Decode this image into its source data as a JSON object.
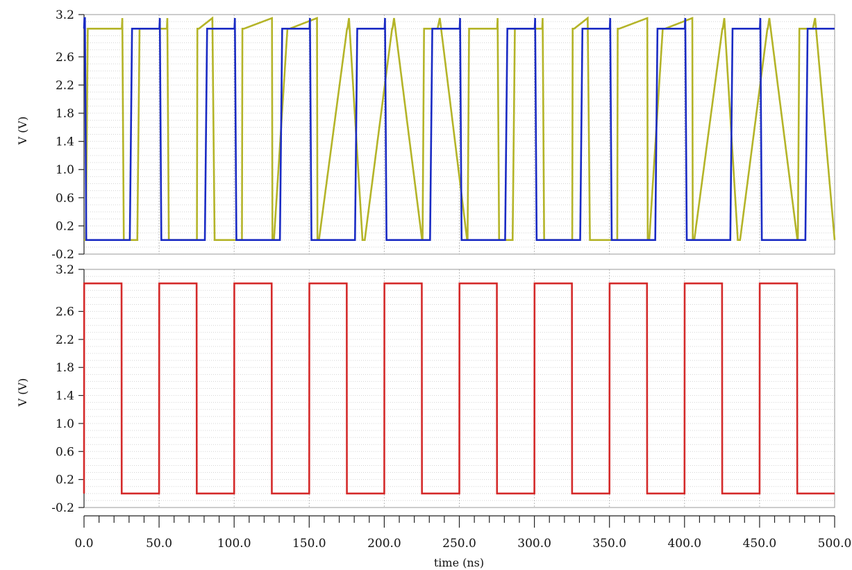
{
  "chart_data": [
    {
      "type": "line",
      "title": "",
      "ylabel": "V (V)",
      "ylim": [
        -0.2,
        3.2
      ],
      "yticks": [
        "3.2",
        "2.6",
        "2.2",
        "1.8",
        "1.4",
        "1.0",
        "0.6",
        "0.2",
        "-0.2"
      ],
      "grid": true,
      "series": [
        {
          "color": "#b4b428",
          "high": 3.0,
          "low": 0.0,
          "overshoot": 3.15,
          "x": [
            0,
            1.2,
            2.5,
            25.2,
            25.5,
            26.5,
            35.5,
            37,
            55.2,
            55.5,
            56.5,
            75.2,
            75.5,
            76.5,
            85.5,
            87,
            105.2,
            105.5,
            106.5,
            125.2,
            125.5,
            126.5,
            135.5,
            137,
            155.2,
            155.5,
            156.5,
            175.2,
            175.5,
            176.5,
            185.5,
            187,
            205.2,
            205.5,
            206.5,
            225.2,
            225.5,
            226.5,
            235.5,
            237,
            255.2,
            255.5,
            256.5,
            275.2,
            275.5,
            276.5,
            285.5,
            287,
            305.2,
            305.5,
            306.5,
            325.2,
            325.5,
            326.5,
            335.5,
            337,
            355.2,
            355.5,
            356.5,
            375.2,
            375.5,
            376.5,
            385.5,
            387,
            405.2,
            405.5,
            406.5,
            425.2,
            425.5,
            426.5,
            435.5,
            437,
            455.2,
            455.5,
            456.5,
            475.2,
            475.5,
            476.5,
            485.5,
            487,
            500
          ],
          "y": [
            0,
            0,
            3.0,
            3.0,
            3.15,
            0,
            0,
            3.0,
            3.0,
            3.15,
            0,
            0,
            3.0,
            3.0,
            3.15,
            0,
            0,
            3.0,
            3.0,
            3.15,
            0,
            0,
            3.0,
            3.0,
            3.15,
            0,
            0,
            3.0,
            3.0,
            3.15,
            0,
            0,
            3.0,
            3.0,
            3.15,
            0,
            0,
            3.0,
            3.0,
            3.15,
            0,
            0,
            3.0,
            3.0,
            3.15,
            0,
            0,
            3.0,
            3.0,
            3.15,
            0,
            0,
            3.0,
            3.0,
            3.15,
            0,
            0,
            3.0,
            3.0,
            3.15,
            0,
            0,
            3.0,
            3.0,
            3.15,
            0,
            0,
            3.0,
            3.0,
            3.15,
            0,
            0,
            3.0,
            3.0,
            3.15,
            0,
            0,
            3.0,
            3.0,
            3.15,
            0
          ]
        },
        {
          "color": "#1a2bc4",
          "high": 3.0,
          "low": 0.0,
          "overshoot": 3.15,
          "x": [
            0,
            0.3,
            0.6,
            1.5,
            30.5,
            32,
            50.2,
            50.5,
            51.5,
            80.5,
            82,
            100.2,
            100.5,
            101.5,
            130.5,
            132,
            150.2,
            150.5,
            151.5,
            180.5,
            182,
            200.2,
            200.5,
            201.5,
            230.5,
            232,
            250.2,
            250.5,
            251.5,
            280.5,
            282,
            300.2,
            300.5,
            301.5,
            330.5,
            332,
            350.2,
            350.5,
            351.5,
            380.5,
            382,
            400.2,
            400.5,
            401.5,
            430.5,
            432,
            450.2,
            450.5,
            451.5,
            480.5,
            482,
            500
          ],
          "y": [
            3.0,
            3.15,
            3.15,
            0,
            0,
            3.0,
            3.0,
            3.15,
            0,
            0,
            3.0,
            3.0,
            3.15,
            0,
            0,
            3.0,
            3.0,
            3.15,
            0,
            0,
            3.0,
            3.0,
            3.15,
            0,
            0,
            3.0,
            3.0,
            3.15,
            0,
            0,
            3.0,
            3.0,
            3.15,
            0,
            0,
            3.0,
            3.0,
            3.15,
            0,
            0,
            3.0,
            3.0,
            3.15,
            0,
            0,
            3.0,
            3.0,
            3.15,
            0,
            0,
            3.0,
            3.0
          ]
        }
      ]
    },
    {
      "type": "line",
      "title": "",
      "ylabel": "V (V)",
      "xlabel": "time (ns)",
      "ylim": [
        -0.2,
        3.2
      ],
      "xlim": [
        0,
        500
      ],
      "yticks": [
        "3.2",
        "2.6",
        "2.2",
        "1.8",
        "1.4",
        "1.0",
        "0.6",
        "0.2",
        "-0.2"
      ],
      "xticks": [
        "0.0",
        "50.0",
        "100.0",
        "150.0",
        "200.0",
        "250.0",
        "300.0",
        "350.0",
        "400.0",
        "450.0",
        "500.0"
      ],
      "grid": true,
      "series": [
        {
          "color": "#d42a2a",
          "high": 3.0,
          "low": 0.0,
          "period_ns": 50,
          "duty": 0.5,
          "x": [
            0,
            0.1,
            25,
            25.1,
            50,
            50.1,
            75,
            75.1,
            100,
            100.1,
            125,
            125.1,
            150,
            150.1,
            175,
            175.1,
            200,
            200.1,
            225,
            225.1,
            250,
            250.1,
            275,
            275.1,
            300,
            300.1,
            325,
            325.1,
            350,
            350.1,
            375,
            375.1,
            400,
            400.1,
            425,
            425.1,
            450,
            450.1,
            475,
            475.1,
            500
          ],
          "y": [
            0,
            3.0,
            3.0,
            0,
            0,
            3.0,
            3.0,
            0,
            0,
            3.0,
            3.0,
            0,
            0,
            3.0,
            3.0,
            0,
            0,
            3.0,
            3.0,
            0,
            0,
            3.0,
            3.0,
            0,
            0,
            3.0,
            3.0,
            0,
            0,
            3.0,
            3.0,
            0,
            0,
            3.0,
            3.0,
            0,
            0,
            3.0,
            3.0,
            0,
            0
          ]
        }
      ]
    }
  ]
}
